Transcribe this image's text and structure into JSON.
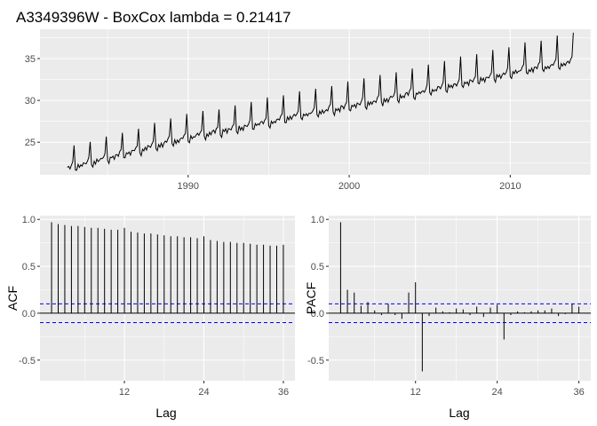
{
  "chart_data": [
    {
      "type": "line",
      "title": "A3349396W - BoxCox lambda =  0.21417",
      "x_ticks": [
        1990,
        2000,
        2010
      ],
      "y_ticks": [
        25,
        30,
        35
      ],
      "xlim": [
        1980.8,
        2015.0
      ],
      "ylim": [
        21.1,
        38.5
      ],
      "series_start": 1982.5,
      "series_end": 2013.917,
      "frequency": 12,
      "trend": {
        "x": [
          1982.5,
          1990,
          2000,
          2005,
          2010,
          2013.917
        ],
        "y": [
          21.9,
          25.6,
          29.3,
          31.2,
          33.3,
          34.7
        ]
      },
      "december_peak_height": [
        2.5,
        3.3
      ],
      "colors": {
        "line": "#000000",
        "panel": "#ebebeb"
      }
    },
    {
      "type": "bar",
      "ylabel": "ACF",
      "xlabel": "Lag",
      "x_ticks": [
        12,
        24,
        36
      ],
      "y_ticks": [
        -0.5,
        0.0,
        0.5,
        1.0
      ],
      "xlim": [
        -0.75,
        37.75
      ],
      "ylim": [
        -0.72,
        1.04
      ],
      "lags": [
        1,
        2,
        3,
        4,
        5,
        6,
        7,
        8,
        9,
        10,
        11,
        12,
        13,
        14,
        15,
        16,
        17,
        18,
        19,
        20,
        21,
        22,
        23,
        24,
        25,
        26,
        27,
        28,
        29,
        30,
        31,
        32,
        33,
        34,
        35,
        36
      ],
      "values": [
        0.97,
        0.95,
        0.94,
        0.93,
        0.93,
        0.92,
        0.91,
        0.91,
        0.9,
        0.89,
        0.89,
        0.91,
        0.87,
        0.86,
        0.85,
        0.85,
        0.84,
        0.83,
        0.82,
        0.82,
        0.81,
        0.81,
        0.8,
        0.82,
        0.78,
        0.77,
        0.76,
        0.76,
        0.75,
        0.75,
        0.74,
        0.73,
        0.73,
        0.72,
        0.72,
        0.73
      ],
      "ci": 0.1,
      "colors": {
        "bar": "#000000",
        "ci": "#0000ff"
      }
    },
    {
      "type": "bar",
      "ylabel": "PACF",
      "xlabel": "Lag",
      "x_ticks": [
        12,
        24,
        36
      ],
      "y_ticks": [
        -0.5,
        0.0,
        0.5,
        1.0
      ],
      "xlim": [
        -0.75,
        37.75
      ],
      "ylim": [
        -0.72,
        1.04
      ],
      "lags": [
        1,
        2,
        3,
        4,
        5,
        6,
        7,
        8,
        9,
        10,
        11,
        12,
        13,
        14,
        15,
        16,
        17,
        18,
        19,
        20,
        21,
        22,
        23,
        24,
        25,
        26,
        27,
        28,
        29,
        30,
        31,
        32,
        33,
        34,
        35,
        36
      ],
      "values": [
        0.97,
        0.25,
        0.22,
        0.08,
        0.12,
        0.03,
        -0.02,
        0.1,
        -0.02,
        -0.06,
        0.22,
        0.33,
        -0.62,
        -0.03,
        0.06,
        0.02,
        0.01,
        0.05,
        0.04,
        -0.02,
        0.07,
        -0.04,
        0.06,
        0.09,
        -0.28,
        -0.02,
        0.02,
        0.01,
        0.02,
        0.03,
        0.03,
        0.05,
        -0.03,
        -0.01,
        0.1,
        0.07
      ],
      "ci": 0.1,
      "colors": {
        "bar": "#000000",
        "ci": "#0000ff"
      }
    }
  ]
}
